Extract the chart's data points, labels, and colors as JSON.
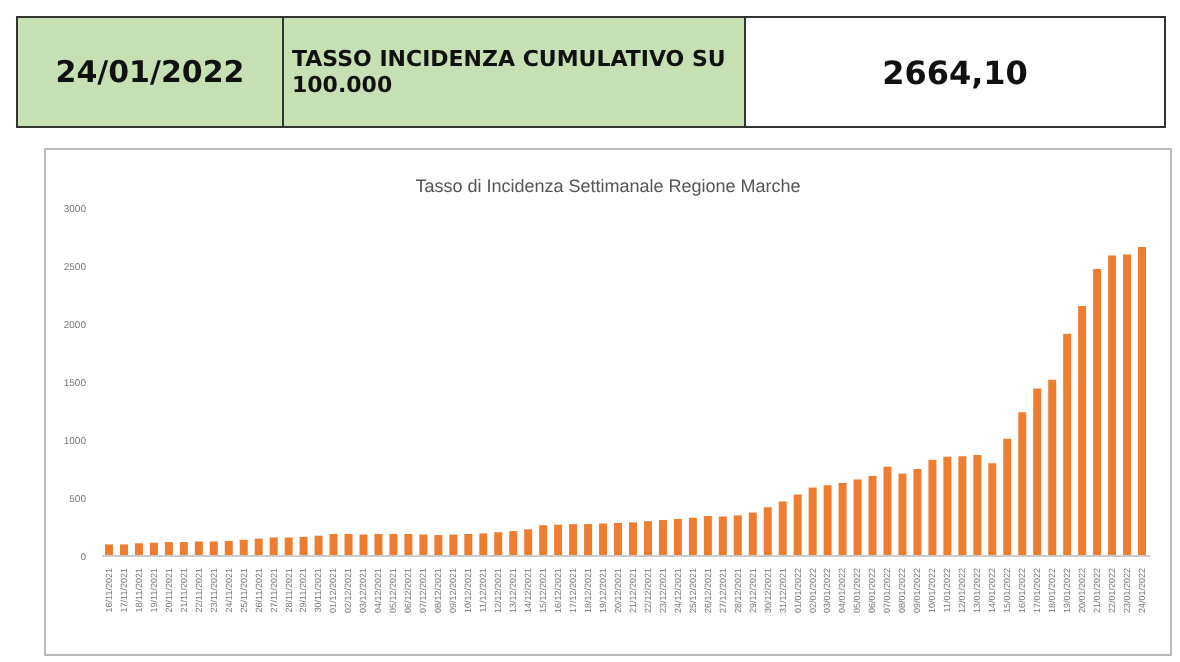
{
  "chart_data": {
    "type": "bar",
    "title": "Tasso di Incidenza Settimanale Regione Marche",
    "annotations": [
      "24/01/2022",
      "TASSO INCIDENZA CUMULATIVO SU 100.000",
      "2664,10"
    ],
    "categories": [
      "16/11/2021",
      "17/11/2021",
      "18/11/2021",
      "19/11/2021",
      "20/11/2021",
      "21/11/2021",
      "22/11/2021",
      "23/11/2021",
      "24/11/2021",
      "25/11/2021",
      "26/11/2021",
      "27/11/2021",
      "28/11/2021",
      "29/11/2021",
      "30/11/2021",
      "01/12/2021",
      "02/12/2021",
      "03/12/2021",
      "04/12/2021",
      "05/12/2021",
      "06/12/2021",
      "07/12/2021",
      "08/12/2021",
      "09/12/2021",
      "10/12/2021",
      "11/12/2021",
      "12/12/2021",
      "13/12/2021",
      "14/12/2021",
      "15/12/2021",
      "16/12/2021",
      "17/12/2021",
      "18/12/2021",
      "19/12/2021",
      "20/12/2021",
      "21/12/2021",
      "22/12/2021",
      "23/12/2021",
      "24/12/2021",
      "25/12/2021",
      "26/12/2021",
      "27/12/2021",
      "28/12/2021",
      "29/12/2021",
      "30/12/2021",
      "31/12/2021",
      "01/01/2022",
      "02/01/2022",
      "03/01/2022",
      "04/01/2022",
      "05/01/2022",
      "06/01/2022",
      "07/01/2022",
      "08/01/2022",
      "09/01/2022",
      "10/01/2022",
      "11/01/2022",
      "12/01/2022",
      "13/01/2022",
      "14/01/2022",
      "15/01/2022",
      "16/01/2022",
      "17/01/2022",
      "18/01/2022",
      "19/01/2022",
      "20/01/2022",
      "21/01/2022",
      "22/01/2022",
      "23/01/2022",
      "24/01/2022"
    ],
    "values": [
      100,
      100,
      110,
      115,
      120,
      120,
      125,
      125,
      130,
      140,
      150,
      160,
      160,
      165,
      175,
      190,
      190,
      185,
      190,
      190,
      190,
      185,
      180,
      185,
      190,
      195,
      205,
      215,
      230,
      265,
      270,
      275,
      275,
      280,
      285,
      290,
      300,
      310,
      320,
      330,
      345,
      340,
      350,
      375,
      420,
      470,
      530,
      590,
      610,
      630,
      660,
      690,
      770,
      710,
      750,
      830,
      855,
      860,
      870,
      800,
      1010,
      1240,
      1445,
      1520,
      1915,
      2155,
      2475,
      2590,
      2600,
      2664.1
    ],
    "color": "#ed7d31",
    "ylim": [
      0,
      3000
    ],
    "yticks": [
      0,
      500,
      1000,
      1500,
      2000,
      2500,
      3000
    ],
    "grid": false,
    "legend": false
  }
}
